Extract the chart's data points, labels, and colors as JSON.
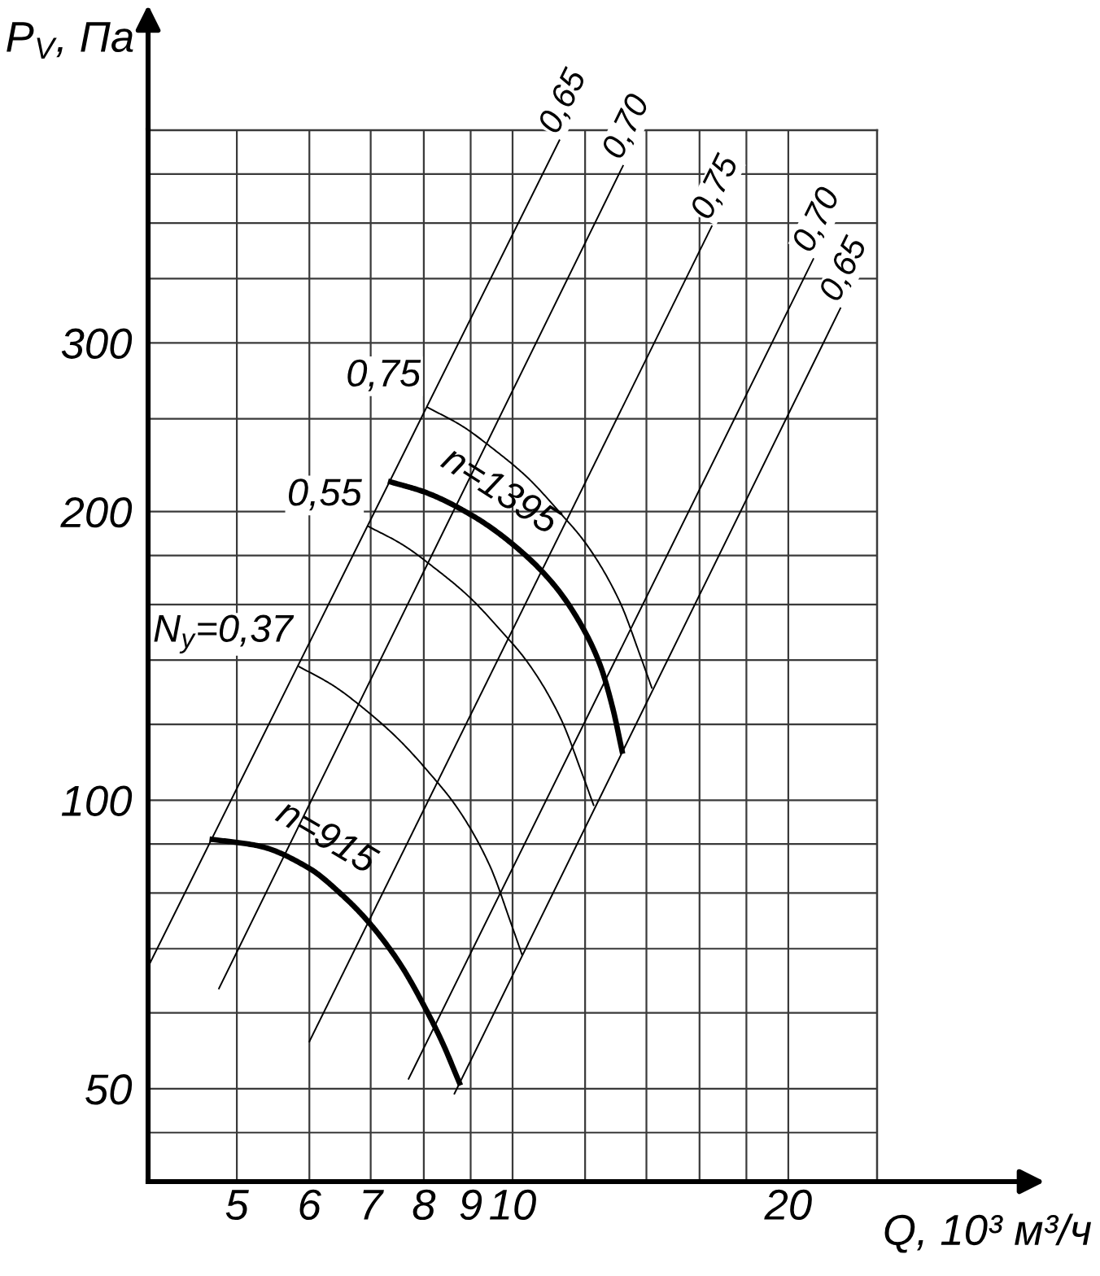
{
  "chart_data": {
    "type": "line",
    "xlabel": "Q, 10³ м³/ч",
    "ylabel": "P$_{V}$, Па",
    "log": "xy",
    "grid": true,
    "xlim": [
      4,
      25
    ],
    "xticks": [
      5,
      6,
      7,
      8,
      9,
      10,
      {
        "value": 12,
        "label": null
      },
      {
        "value": 14,
        "label": null
      },
      {
        "value": 16,
        "label": null
      },
      {
        "value": 18,
        "label": null
      },
      20
    ],
    "ylim": [
      40,
      500
    ],
    "yticks": [
      {
        "value": 45,
        "label": null
      },
      50,
      {
        "value": 60,
        "label": null
      },
      {
        "value": 70,
        "label": null
      },
      {
        "value": 80,
        "label": null
      },
      {
        "value": 90,
        "label": null
      },
      100,
      {
        "value": 120,
        "label": null
      },
      {
        "value": 140,
        "label": null
      },
      {
        "value": 160,
        "label": null
      },
      {
        "value": 180,
        "label": null
      },
      200,
      {
        "value": 250,
        "label": null
      },
      300,
      {
        "value": 350,
        "label": null
      },
      {
        "value": 400,
        "label": null
      },
      {
        "value": 450,
        "label": null
      }
    ],
    "series": [
      {
        "color": "#000000",
        "x": [
          4.0,
          11.25
        ],
        "values": [
          67,
          488
        ]
      },
      {
        "color": "#000000",
        "x": [
          4.78,
          13.2
        ],
        "values": [
          63.6,
          459
        ]
      },
      {
        "color": "#000000",
        "x": [
          6.0,
          16.5
        ],
        "values": [
          56,
          397
        ]
      },
      {
        "color": "#000000",
        "x": [
          7.7,
          21.3
        ],
        "values": [
          51.2,
          367
        ]
      },
      {
        "color": "#000000",
        "x": [
          8.64,
          22.8
        ],
        "values": [
          49.4,
          326
        ]
      },
      {
        "color": "#000000",
        "x": [
          5.85,
          6.37,
          6.91,
          7.49,
          8.13,
          8.7,
          9.44,
          9.97,
          10.24
        ],
        "values": [
          137.8,
          131.7,
          124.2,
          116,
          106.5,
          98.2,
          85.5,
          74.2,
          69
        ]
      },
      {
        "color": "#000000",
        "x": [
          6.96,
          7.58,
          8.23,
          8.94,
          9.71,
          10.4,
          11.29,
          11.93,
          12.26
        ],
        "values": [
          193,
          184.8,
          174.5,
          163.4,
          150.3,
          139,
          121.6,
          106.1,
          98.8
        ]
      },
      {
        "color": "#000000",
        "x": [
          8.07,
          8.8,
          9.55,
          10.37,
          11.25,
          12.05,
          13.08,
          13.81,
          14.19
        ],
        "values": [
          257,
          245.8,
          232.1,
          217.3,
          199.8,
          184.7,
          161.4,
          140.8,
          131
        ]
      },
      {
        "name": "n=915",
        "color": "#000000",
        "x": [
          4.7,
          5.28,
          6.01,
          6.48,
          6.93,
          7.52,
          8.05,
          8.38,
          8.75
        ],
        "values": [
          91,
          89.6,
          84.8,
          80,
          75,
          67.7,
          60.4,
          55.9,
          50.7
        ]
      },
      {
        "name": "n=1395",
        "color": "#000000",
        "x": [
          7.36,
          8.02,
          9.07,
          10.1,
          11.1,
          11.87,
          12.46,
          12.87,
          13.17
        ],
        "values": [
          214.8,
          209.6,
          197.7,
          183.5,
          167.7,
          152.6,
          138.4,
          124.5,
          112.5
        ]
      }
    ],
    "annotations": [
      {
        "text": "0,65",
        "x": 11.25,
        "y": 488
      },
      {
        "text": "0,70",
        "x": 13.2,
        "y": 459
      },
      {
        "text": "0,75",
        "x": 16.5,
        "y": 397
      },
      {
        "text": "0,70",
        "x": 21.3,
        "y": 367
      },
      {
        "text": "0,65",
        "x": 22.8,
        "y": 326
      },
      {
        "text": "N$_{y}$=0,37",
        "x": 5.85,
        "y": 137.8
      },
      {
        "text": "0,55",
        "x": 6.96,
        "y": 193
      },
      {
        "text": "0,75",
        "x": 8.07,
        "y": 257
      }
    ]
  }
}
